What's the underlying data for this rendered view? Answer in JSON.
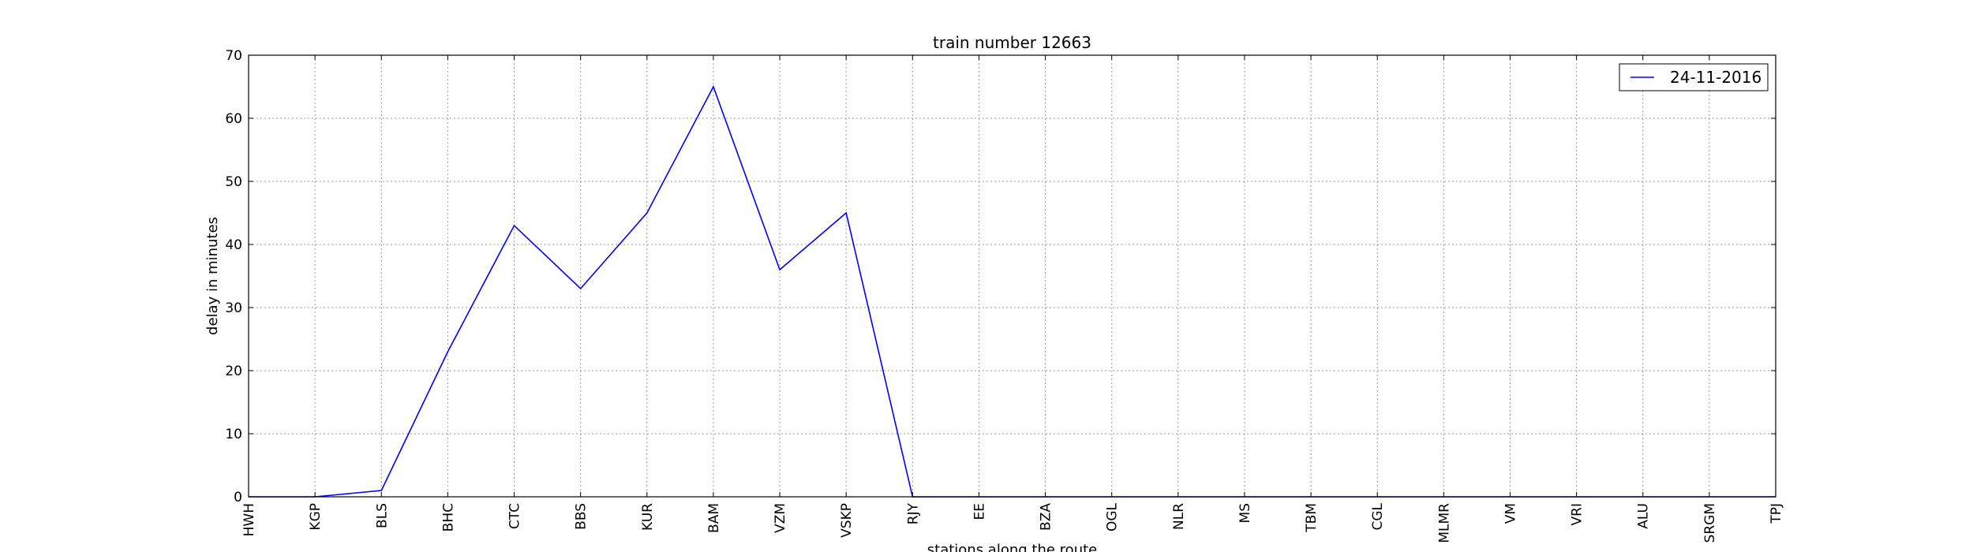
{
  "chart_data": {
    "type": "line",
    "title": "train number 12663",
    "xlabel": "stations along the route",
    "ylabel": "delay in minutes",
    "categories": [
      "HWH",
      "KGP",
      "BLS",
      "BHC",
      "CTC",
      "BBS",
      "KUR",
      "BAM",
      "VZM",
      "VSKP",
      "RJY",
      "EE",
      "BZA",
      "OGL",
      "NLR",
      "MS",
      "TBM",
      "CGL",
      "MLMR",
      "VM",
      "VRI",
      "ALU",
      "SRGM",
      "TPJ"
    ],
    "series": [
      {
        "name": "24-11-2016",
        "color": "#0000ff",
        "values": [
          0,
          0,
          1,
          23,
          43,
          33,
          45,
          65,
          36,
          45,
          0,
          0,
          0,
          0,
          0,
          0,
          0,
          0,
          0,
          0,
          0,
          0,
          0,
          0
        ]
      }
    ],
    "ylim": [
      0,
      70
    ],
    "yticks": [
      0,
      10,
      20,
      30,
      40,
      50,
      60,
      70
    ],
    "grid": true,
    "legend_position": "top-right"
  }
}
